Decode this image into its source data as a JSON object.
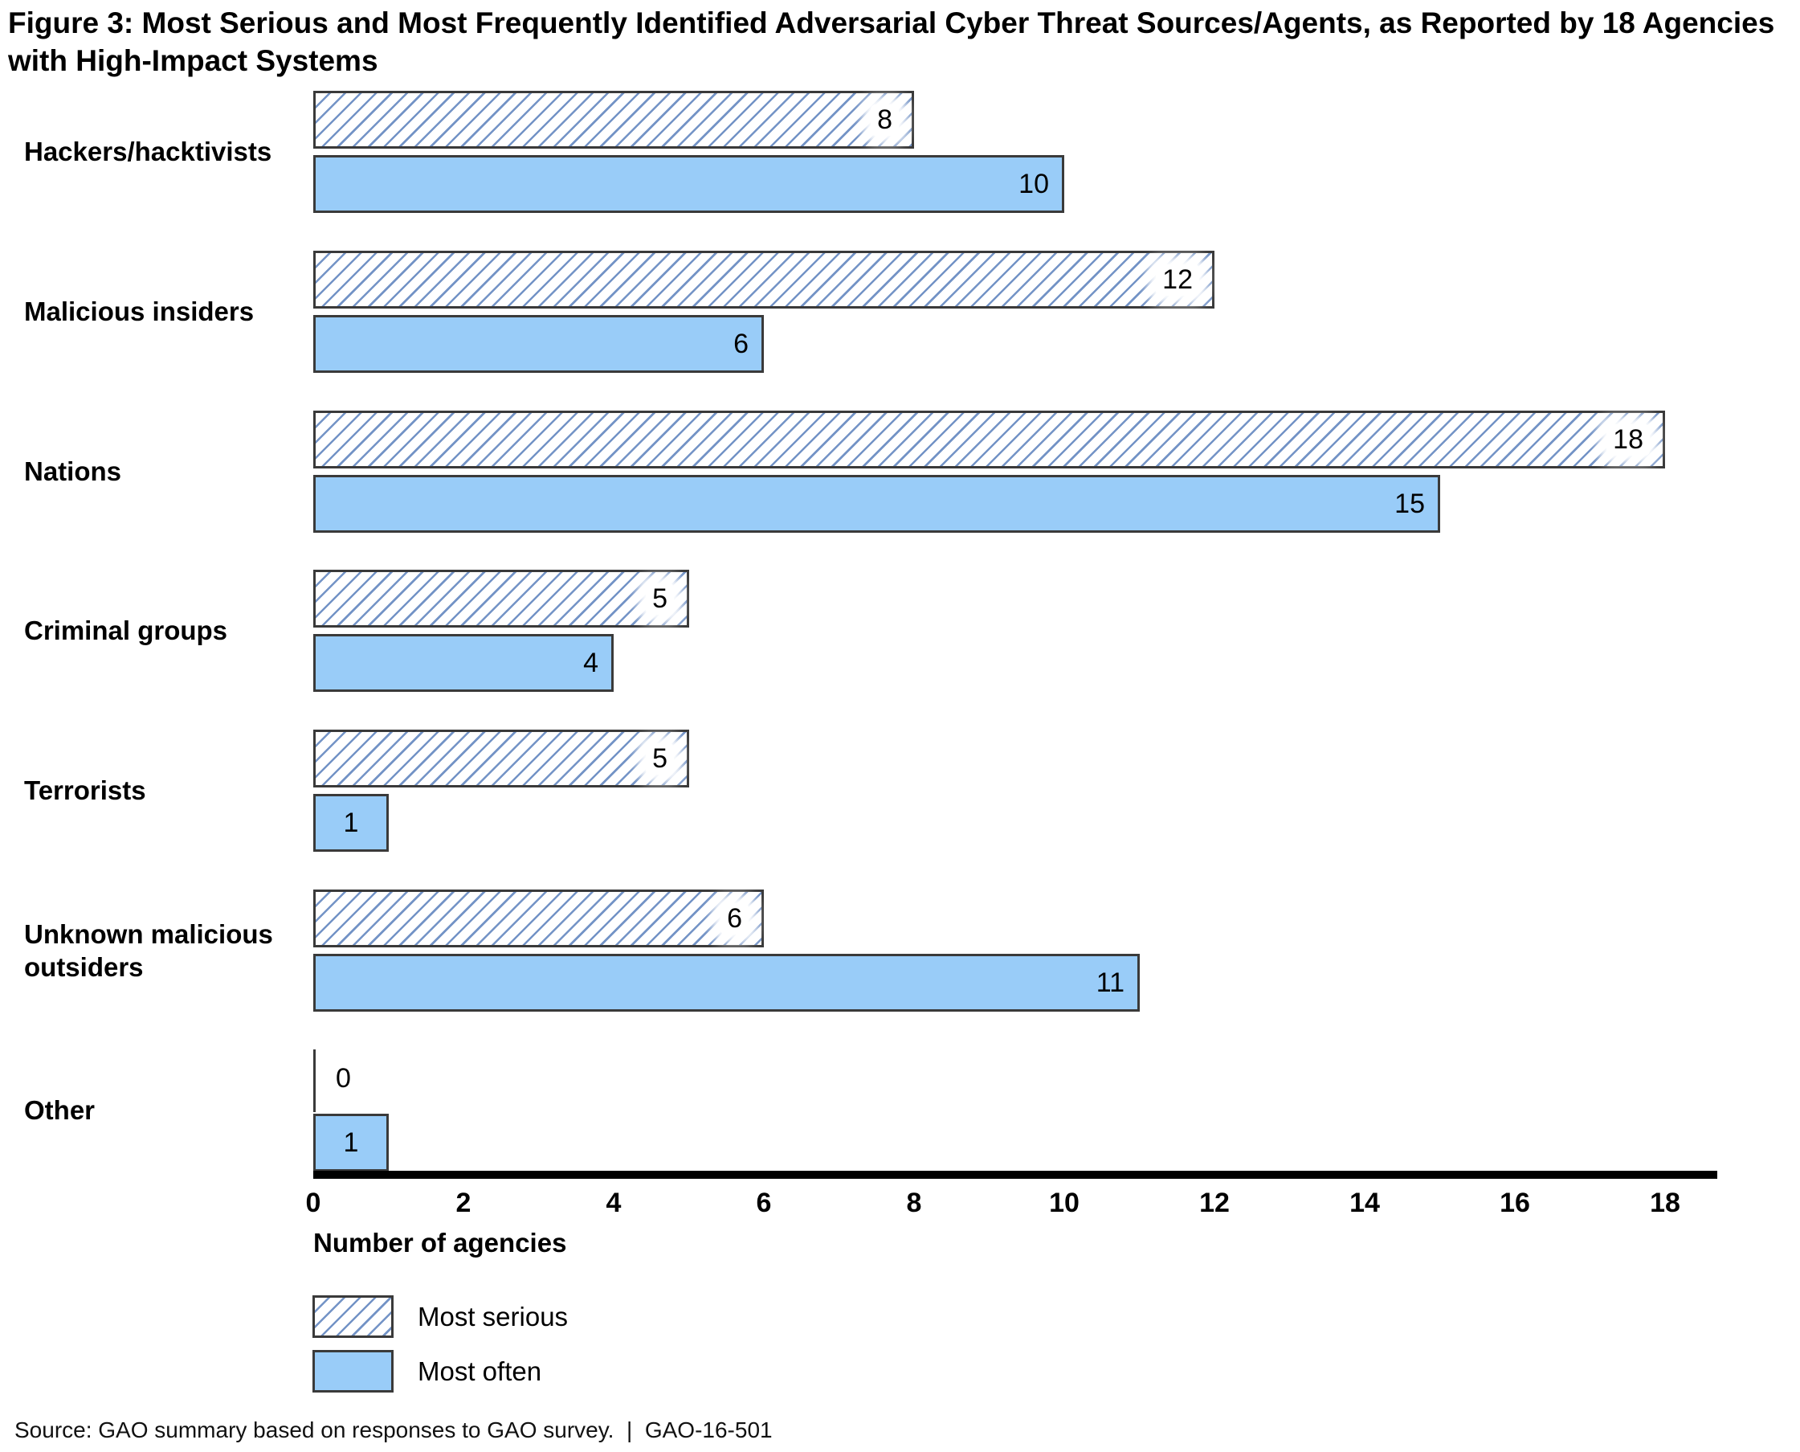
{
  "title": "Figure 3: Most Serious and Most Frequently Identified Adversarial Cyber Threat Sources/Agents, as Reported by 18 Agencies with High-Impact Systems",
  "source": "Source: GAO summary based on responses to GAO survey.  |  GAO-16-501",
  "chart_data": {
    "type": "bar",
    "orientation": "horizontal",
    "title": "Figure 3: Most Serious and Most Frequently Identified Adversarial Cyber Threat Sources/Agents, as Reported by 18 Agencies with High-Impact Systems",
    "categories": [
      "Hackers/hacktivists",
      "Malicious insiders",
      "Nations",
      "Criminal groups",
      "Terrorists",
      "Unknown malicious outsiders",
      "Other"
    ],
    "series": [
      {
        "name": "Most serious",
        "style": "hatched",
        "values": [
          8,
          12,
          18,
          5,
          5,
          6,
          0
        ]
      },
      {
        "name": "Most often",
        "style": "solid",
        "values": [
          10,
          6,
          15,
          4,
          1,
          11,
          1
        ]
      }
    ],
    "xlabel": "Number of agencies",
    "xlim": [
      0,
      18
    ],
    "xticks": [
      0,
      2,
      4,
      6,
      8,
      10,
      12,
      14,
      16,
      18
    ],
    "legend": [
      "Most serious",
      "Most often"
    ],
    "legend_position": "bottom-left",
    "grid": false,
    "colors": {
      "solid_fill": "#99CCF8",
      "hatch_line": "#7393C6",
      "bar_border": "#3A3A3A",
      "axis": "#000000",
      "text": "#000000"
    }
  }
}
